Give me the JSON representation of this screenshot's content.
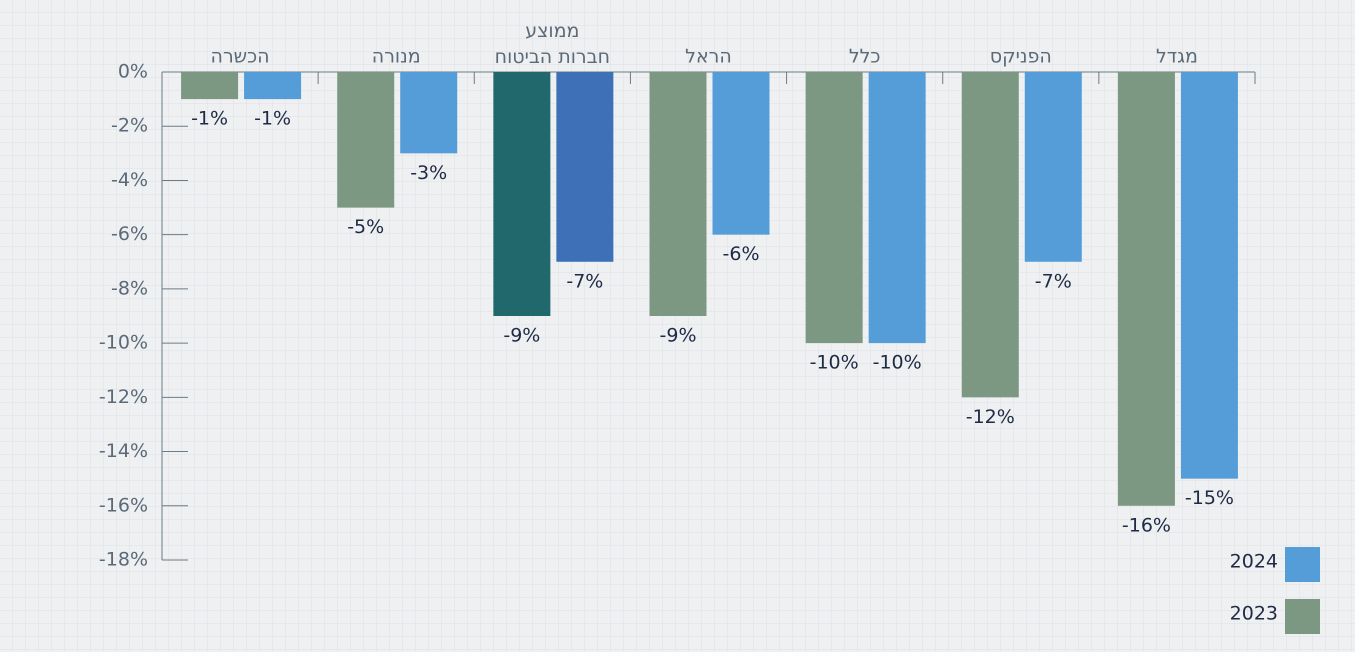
{
  "chart_data": {
    "type": "bar",
    "categories": [
      "הכשרה",
      "מנורה",
      "ממוצע\nחברות הביטוח",
      "הראל",
      "כלל",
      "הפניקס",
      "מגדל"
    ],
    "series": [
      {
        "name": "2023",
        "color": "#7d9882",
        "colors": [
          "#7d9882",
          "#7d9882",
          "#21686c",
          "#7d9882",
          "#7d9882",
          "#7d9882",
          "#7d9882"
        ],
        "values": [
          -1,
          -5,
          -9,
          -9,
          -10,
          -12,
          -16
        ],
        "value_labels": [
          "-1%",
          "-5%",
          "-9%",
          "-9%",
          "-10%",
          "-12%",
          "-16%"
        ]
      },
      {
        "name": "2024",
        "color": "#559dd8",
        "colors": [
          "#559dd8",
          "#559dd8",
          "#3e70b8",
          "#559dd8",
          "#559dd8",
          "#559dd8",
          "#559dd8"
        ],
        "values": [
          -1,
          -3,
          -7,
          -6,
          -10,
          -7,
          -15
        ],
        "value_labels": [
          "-1%",
          "-3%",
          "-7%",
          "-6%",
          "-10%",
          "-7%",
          "-15%"
        ]
      }
    ],
    "ylim": [
      -18,
      0
    ],
    "yticks": [
      {
        "value": 0,
        "label": "0%"
      },
      {
        "value": -2,
        "label": "-2%"
      },
      {
        "value": -4,
        "label": "-4%"
      },
      {
        "value": -6,
        "label": "-6%"
      },
      {
        "value": -8,
        "label": "-8%"
      },
      {
        "value": -10,
        "label": "-10%"
      },
      {
        "value": -12,
        "label": "-12%"
      },
      {
        "value": -14,
        "label": "-14%"
      },
      {
        "value": -16,
        "label": "-16%"
      },
      {
        "value": -18,
        "label": "-18%"
      }
    ],
    "legend": "bottom-right"
  }
}
